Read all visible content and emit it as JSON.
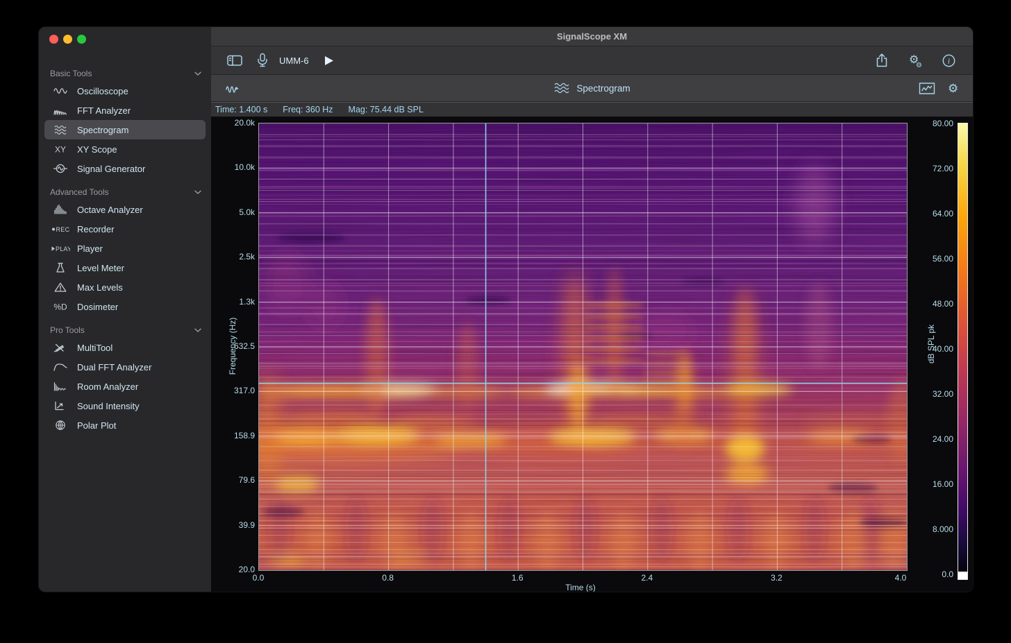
{
  "window": {
    "title": "SignalScope XM",
    "traffic_lights": [
      "#ff5f57",
      "#febc2e",
      "#28c840"
    ],
    "accent_text_color": "#a4d6e9"
  },
  "sidebar": {
    "sections": [
      {
        "label": "Basic Tools",
        "chevron": "chevron-down-icon",
        "items": [
          {
            "icon": "oscilloscope-icon",
            "label": "Oscilloscope",
            "selected": false
          },
          {
            "icon": "fft-analyzer-icon",
            "label": "FFT Analyzer",
            "selected": false
          },
          {
            "icon": "spectrogram-icon",
            "label": "Spectrogram",
            "selected": true
          },
          {
            "icon": "xy-scope-icon",
            "label": "XY Scope",
            "selected": false
          },
          {
            "icon": "signal-generator-icon",
            "label": "Signal Generator",
            "selected": false
          }
        ]
      },
      {
        "label": "Advanced Tools",
        "chevron": "chevron-down-icon",
        "items": [
          {
            "icon": "octave-analyzer-icon",
            "label": "Octave Analyzer",
            "selected": false
          },
          {
            "icon": "recorder-icon",
            "label": "Recorder",
            "selected": false
          },
          {
            "icon": "player-icon",
            "label": "Player",
            "selected": false
          },
          {
            "icon": "level-meter-icon",
            "label": "Level Meter",
            "selected": false
          },
          {
            "icon": "max-levels-icon",
            "label": "Max Levels",
            "selected": false
          },
          {
            "icon": "dosimeter-icon",
            "label": "Dosimeter",
            "selected": false
          }
        ]
      },
      {
        "label": "Pro Tools",
        "chevron": "chevron-down-icon",
        "items": [
          {
            "icon": "multitool-icon",
            "label": "MultiTool",
            "selected": false
          },
          {
            "icon": "dual-fft-analyzer-icon",
            "label": "Dual FFT Analyzer",
            "selected": false
          },
          {
            "icon": "room-analyzer-icon",
            "label": "Room Analyzer",
            "selected": false
          },
          {
            "icon": "sound-intensity-icon",
            "label": "Sound Intensity",
            "selected": false
          },
          {
            "icon": "polar-plot-icon",
            "label": "Polar Plot",
            "selected": false
          }
        ]
      }
    ]
  },
  "toolbar": {
    "device_label": "UMM-6",
    "left_icons": [
      "sidebar-toggle-icon",
      "microphone-icon"
    ],
    "run_icon": "play-icon",
    "right_icons": [
      "share-icon",
      "gears-icon",
      "info-icon"
    ]
  },
  "view_header": {
    "left_icon": "signal-flow-icon",
    "title_icon": "spectrogram-icon",
    "title": "Spectrogram",
    "right_icons": [
      "chart-display-icon",
      "gear-icon"
    ]
  },
  "status": {
    "time": "Time: 1.400 s",
    "freq": "Freq: 360 Hz",
    "mag": "Mag: 75.44 dB SPL"
  },
  "chart_data": {
    "type": "heatmap",
    "title": "Spectrogram",
    "xlabel": "Time (s)",
    "ylabel": "Frequency (Hz)",
    "colorbar_label": "dB SPL pk",
    "x_ticks": [
      "0.0",
      "0.8",
      "1.6",
      "2.4",
      "3.2",
      "4.0"
    ],
    "x_range_s": [
      0.0,
      4.0
    ],
    "x_gridline_interval_s": 0.4,
    "y_ticks": [
      "20.0k",
      "10.0k",
      "5.0k",
      "2.5k",
      "1.3k",
      "632.5",
      "317.0",
      "158.9",
      "79.6",
      "39.9",
      "20.0"
    ],
    "y_scale": "log",
    "y_range_hz": [
      20,
      20000
    ],
    "colorbar_ticks": [
      "80.00",
      "72.00",
      "64.00",
      "56.00",
      "48.00",
      "40.00",
      "32.00",
      "24.00",
      "16.00",
      "8.000",
      "0.0"
    ],
    "colorbar_range_db": [
      0,
      80
    ],
    "colormap": "inferno-like (black-purple-magenta-orange-yellow)",
    "cursor": {
      "time_s": 1.4,
      "freq_hz": 360,
      "mag_db_spl": 75.44
    },
    "grid": true,
    "description": "Speech-like audio spectrogram: dark violet background above ~1 kHz with horizontal striations; bright orange/yellow harmonic bands near 150-650 Hz; vertical syllable bursts around t≈0.3-0.9, 1.2-1.5, 1.9-2.1, 2.4-2.6 and 3.0-3.2 s; diffuse warm orange energy below 100 Hz; cyan cursor crosshair at t=1.400 s / 360 Hz."
  }
}
